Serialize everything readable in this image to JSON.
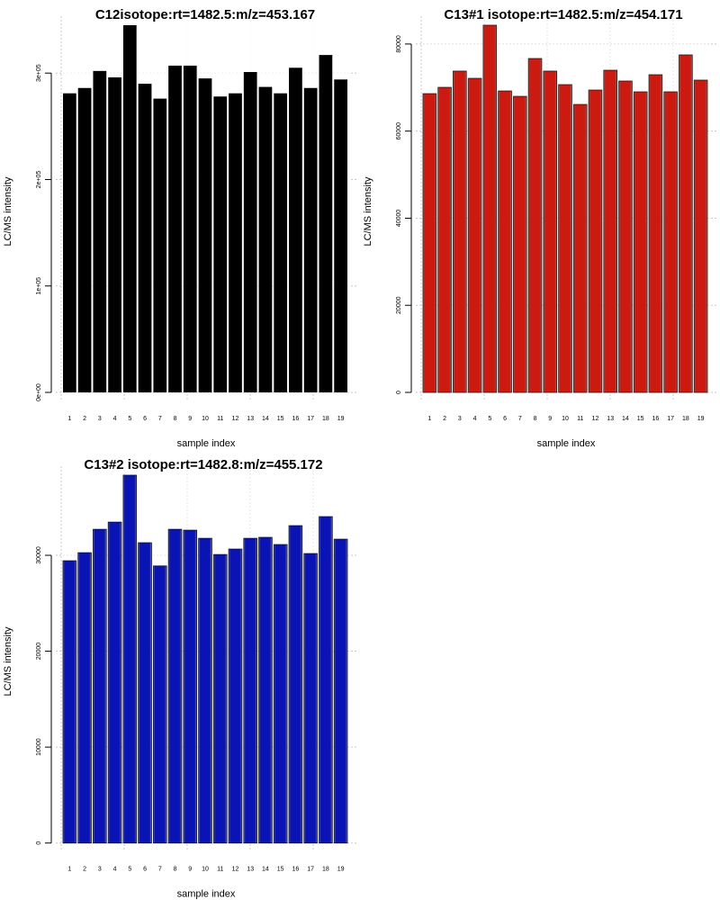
{
  "chart_data": [
    {
      "type": "bar",
      "title": "C12isotope:rt=1482.5:m/z=453.167",
      "xlabel": "sample index",
      "ylabel": "LC/MS intensity",
      "categories": [
        "1",
        "2",
        "3",
        "4",
        "5",
        "6",
        "7",
        "8",
        "9",
        "10",
        "11",
        "12",
        "13",
        "14",
        "15",
        "16",
        "17",
        "18",
        "19"
      ],
      "values": [
        281000,
        286000,
        302000,
        296000,
        345000,
        290000,
        276000,
        307000,
        307000,
        295000,
        278000,
        281000,
        301000,
        287000,
        281000,
        305000,
        286000,
        317000,
        294000
      ],
      "ylim": [
        0,
        345000
      ],
      "yticks": [
        0,
        100000,
        200000,
        300000
      ],
      "ytick_labels": [
        "0e+00",
        "1e+05",
        "2e+05",
        "3e+05"
      ],
      "grid": true,
      "bar_color": "#000000",
      "bar_edge": "#000000"
    },
    {
      "type": "bar",
      "title": "C13#1 isotope:rt=1482.5:m/z=454.171",
      "xlabel": "sample index",
      "ylabel": "LC/MS intensity",
      "categories": [
        "1",
        "2",
        "3",
        "4",
        "5",
        "6",
        "7",
        "8",
        "9",
        "10",
        "11",
        "12",
        "13",
        "14",
        "15",
        "16",
        "17",
        "18",
        "19"
      ],
      "values": [
        68600,
        70050,
        73780,
        72120,
        84320,
        69220,
        67980,
        76670,
        73780,
        70670,
        66120,
        69430,
        73980,
        71500,
        69020,
        72950,
        69020,
        77500,
        71710
      ],
      "ylim": [
        0,
        84320
      ],
      "yticks": [
        0,
        20000,
        40000,
        60000,
        80000
      ],
      "ytick_labels": [
        "0",
        "20000",
        "40000",
        "60000",
        "80000"
      ],
      "grid": true,
      "bar_color": "#cc1a10",
      "bar_edge": "#3a0a08"
    },
    {
      "type": "bar",
      "title": "C13#2 isotope:rt=1482.8:m/z=455.172",
      "xlabel": "sample index",
      "ylabel": "LC/MS intensity",
      "categories": [
        "1",
        "2",
        "3",
        "4",
        "5",
        "6",
        "7",
        "8",
        "9",
        "10",
        "11",
        "12",
        "13",
        "14",
        "15",
        "16",
        "17",
        "18",
        "19"
      ],
      "values": [
        29430,
        30270,
        32710,
        33460,
        38350,
        31310,
        28890,
        32710,
        32620,
        31770,
        30080,
        30650,
        31770,
        31870,
        31120,
        33090,
        30180,
        34030,
        31680
      ],
      "ylim": [
        0,
        38350
      ],
      "yticks": [
        0,
        10000,
        20000,
        30000
      ],
      "ytick_labels": [
        "0",
        "10000",
        "20000",
        "30000"
      ],
      "grid": true,
      "bar_color": "#0a14b4",
      "bar_edge": "#050a40"
    }
  ]
}
